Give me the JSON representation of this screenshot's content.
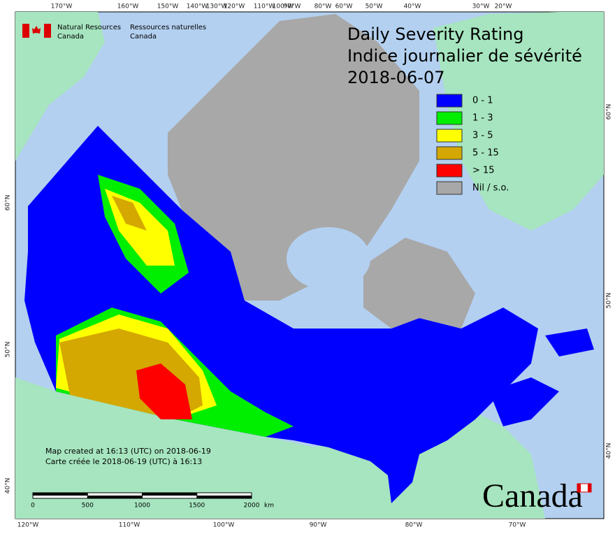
{
  "header": {
    "title": "Daily Severity Rating",
    "subtitle": "Indice journalier de sévérité",
    "date": "2018-06-07"
  },
  "agency": {
    "en": [
      "Natural Resources",
      "Canada"
    ],
    "fr": [
      "Ressources naturelles",
      "Canada"
    ]
  },
  "legend": [
    {
      "label": "0 - 1",
      "color": "#0000ff"
    },
    {
      "label": "1 - 3",
      "color": "#00ee00"
    },
    {
      "label": "3 - 5",
      "color": "#ffff00"
    },
    {
      "label": "5 - 15",
      "color": "#d4a800"
    },
    {
      "label": "> 15",
      "color": "#ff0000"
    },
    {
      "label": "Nil / s.o.",
      "color": "#a8a8a8"
    }
  ],
  "graticule": {
    "top": [
      "170°W",
      "160°W",
      "150°W",
      "140°W",
      "130°W",
      "120°W",
      "110°W",
      "100°W",
      "90°W",
      "80°W",
      "60°W",
      "50°W",
      "40°W",
      "30°W",
      "20°W"
    ],
    "bottom": [
      "120°W",
      "110°W",
      "100°W",
      "90°W",
      "80°W",
      "70°W"
    ],
    "left": [
      "60°N",
      "50°N",
      "40°N"
    ],
    "right": [
      "60°N",
      "50°N",
      "40°N"
    ]
  },
  "footer": {
    "created_en": "Map created at 16:13 (UTC) on 2018-06-19",
    "created_fr": "Carte créée le 2018-06-19 (UTC) à 16:13"
  },
  "scale_bar": {
    "ticks": [
      0,
      500,
      1000,
      1500,
      2000
    ],
    "unit": "km"
  },
  "wordmark": "Canada"
}
